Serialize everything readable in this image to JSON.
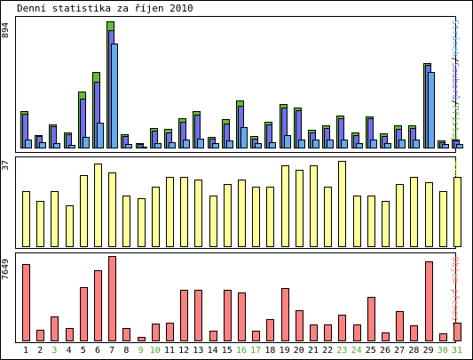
{
  "chart_data": {
    "type": "bar",
    "title": "Denní statistika za říjen 2010",
    "categories": [
      "1",
      "2",
      "3",
      "4",
      "5",
      "6",
      "7",
      "8",
      "9",
      "10",
      "11",
      "12",
      "13",
      "14",
      "15",
      "16",
      "17",
      "18",
      "19",
      "20",
      "21",
      "22",
      "23",
      "24",
      "25",
      "26",
      "27",
      "28",
      "29",
      "30",
      "31"
    ],
    "weekend_days": [
      "3",
      "9",
      "10",
      "16",
      "17",
      "23",
      "24",
      "30",
      "31"
    ],
    "colors": {
      "pages": "#66aaee",
      "files": "#7070ee",
      "hits": "#66bb33",
      "visits": "#ffff99",
      "kbytes": "#ff8080",
      "weekday_label": "#000000",
      "weekend_label": "#55aa22"
    },
    "panels": [
      {
        "id": "hits",
        "ymax_label": "894",
        "ylim": [
          0,
          894
        ],
        "legend": [
          {
            "text": "Stránek",
            "color": "#66aaee"
          },
          {
            "text": "/",
            "color": "#000000"
          },
          {
            "text": "Souborů",
            "color": "#7070ee"
          },
          {
            "text": "/",
            "color": "#000000"
          },
          {
            "text": "Přístupů",
            "color": "#66bb33"
          }
        ],
        "series": [
          {
            "key": "hits",
            "values": [
              265,
              95,
              170,
              110,
              400,
              540,
              894,
              100,
              40,
              145,
              140,
              215,
              265,
              80,
              205,
              335,
              85,
              190,
              310,
              290,
              130,
              165,
              230,
              110,
              225,
              105,
              160,
              165,
              600,
              55,
              65
            ]
          },
          {
            "key": "files",
            "values": [
              245,
              85,
              155,
              100,
              350,
              470,
              830,
              90,
              30,
              125,
              110,
              190,
              240,
              70,
              175,
              300,
              70,
              170,
              285,
              270,
              115,
              145,
              210,
              95,
              210,
              85,
              140,
              145,
              590,
              45,
              55
            ]
          },
          {
            "key": "pages",
            "values": [
              60,
              45,
              40,
              25,
              80,
              180,
              740,
              30,
              15,
              40,
              45,
              65,
              70,
              40,
              55,
              150,
              40,
              45,
              95,
              60,
              60,
              60,
              60,
              40,
              65,
              40,
              60,
              65,
              540,
              30,
              30
            ]
          }
        ]
      },
      {
        "id": "visits",
        "ymax_label": "37",
        "ylim": [
          0,
          37
        ],
        "legend": [
          {
            "text": "Návštěv",
            "color": "#ffff99"
          }
        ],
        "series": [
          {
            "key": "visits",
            "values": [
              24,
              20,
              24,
              18,
              31,
              36,
              32,
              22,
              21,
              26,
              30,
              30,
              29,
              22,
              27,
              29,
              26,
              26,
              35,
              33,
              35,
              26,
              37,
              22,
              22,
              20,
              27,
              30,
              28,
              24,
              30
            ]
          }
        ]
      },
      {
        "id": "traffic",
        "ymax_label": "7649",
        "ylim": [
          0,
          7649
        ],
        "legend": [
          {
            "text": "Objem přenosu",
            "color": "#ff8080"
          }
        ],
        "series": [
          {
            "key": "kbytes",
            "values": [
              6900,
              1000,
              2200,
              1200,
              4900,
              6400,
              7649,
              1200,
              400,
              1600,
              1700,
              4600,
              4600,
              950,
              4600,
              4400,
              950,
              2000,
              4800,
              2800,
              1500,
              1500,
              2400,
              1500,
              4000,
              800,
              2700,
              1400,
              7200,
              700,
              1700
            ]
          }
        ]
      }
    ]
  }
}
